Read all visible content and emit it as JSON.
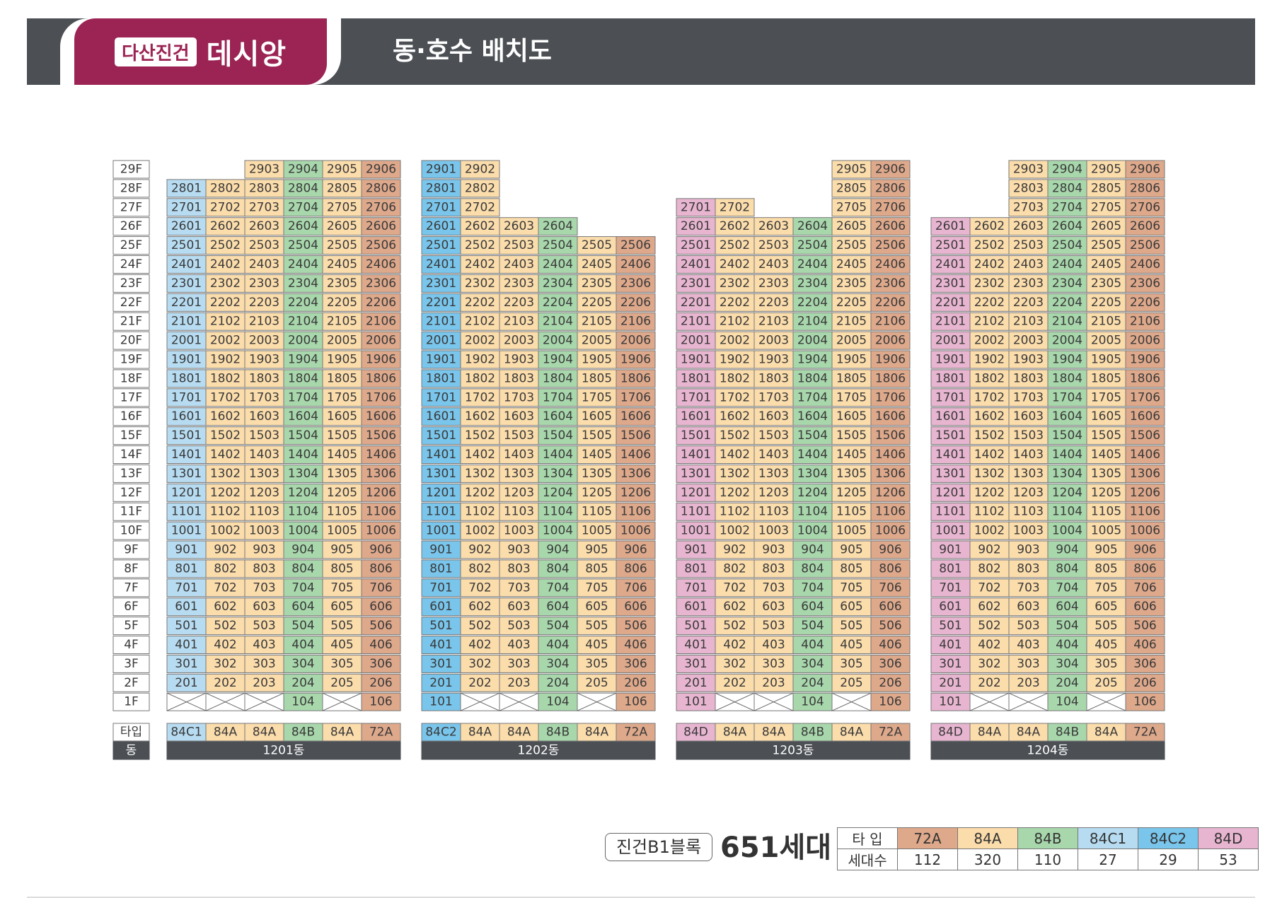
{
  "header": {
    "brand_tag": "다산진건",
    "brand_name": "데시앙",
    "title": "동·호수 배치도"
  },
  "colors": {
    "72A": "#dea88b",
    "84A": "#fbdcab",
    "84B": "#a8d7ac",
    "84C1": "#b7dcf2",
    "84C2": "#79c5eb",
    "84D": "#e8b5d1",
    "border": "#777777",
    "dark": "#4c5055"
  },
  "labels": {
    "type_label": "타입",
    "dong_label": "동"
  },
  "floors": [
    "29F",
    "28F",
    "27F",
    "26F",
    "25F",
    "24F",
    "23F",
    "22F",
    "21F",
    "20F",
    "19F",
    "18F",
    "17F",
    "16F",
    "15F",
    "14F",
    "13F",
    "12F",
    "11F",
    "10F",
    "9F",
    "8F",
    "7F",
    "6F",
    "5F",
    "4F",
    "3F",
    "2F",
    "1F"
  ],
  "buildings": [
    {
      "name": "1201동",
      "types": [
        "84C1",
        "84A",
        "84A",
        "84B",
        "84A",
        "72A"
      ],
      "top_floors": [
        28,
        28,
        29,
        29,
        29,
        29
      ],
      "first_floor": [
        false,
        false,
        false,
        true,
        false,
        true
      ]
    },
    {
      "name": "1202동",
      "types": [
        "84C2",
        "84A",
        "84A",
        "84B",
        "84A",
        "72A"
      ],
      "top_floors": [
        29,
        29,
        26,
        26,
        25,
        25
      ],
      "first_floor": [
        true,
        false,
        false,
        true,
        false,
        true
      ]
    },
    {
      "name": "1203동",
      "types": [
        "84D",
        "84A",
        "84A",
        "84B",
        "84A",
        "72A"
      ],
      "top_floors": [
        27,
        27,
        26,
        26,
        29,
        29
      ],
      "first_floor": [
        true,
        false,
        false,
        true,
        false,
        true
      ]
    },
    {
      "name": "1204동",
      "types": [
        "84D",
        "84A",
        "84A",
        "84B",
        "84A",
        "72A"
      ],
      "top_floors": [
        26,
        26,
        29,
        29,
        29,
        29
      ],
      "first_floor": [
        true,
        false,
        false,
        true,
        false,
        true
      ]
    }
  ],
  "summary": {
    "block_label": "진건B1블록",
    "total": "651세대",
    "type_header": "타  입",
    "count_header": "세대수",
    "types": [
      "72A",
      "84A",
      "84B",
      "84C1",
      "84C2",
      "84D"
    ],
    "counts": [
      "112",
      "320",
      "110",
      "27",
      "29",
      "53"
    ]
  }
}
